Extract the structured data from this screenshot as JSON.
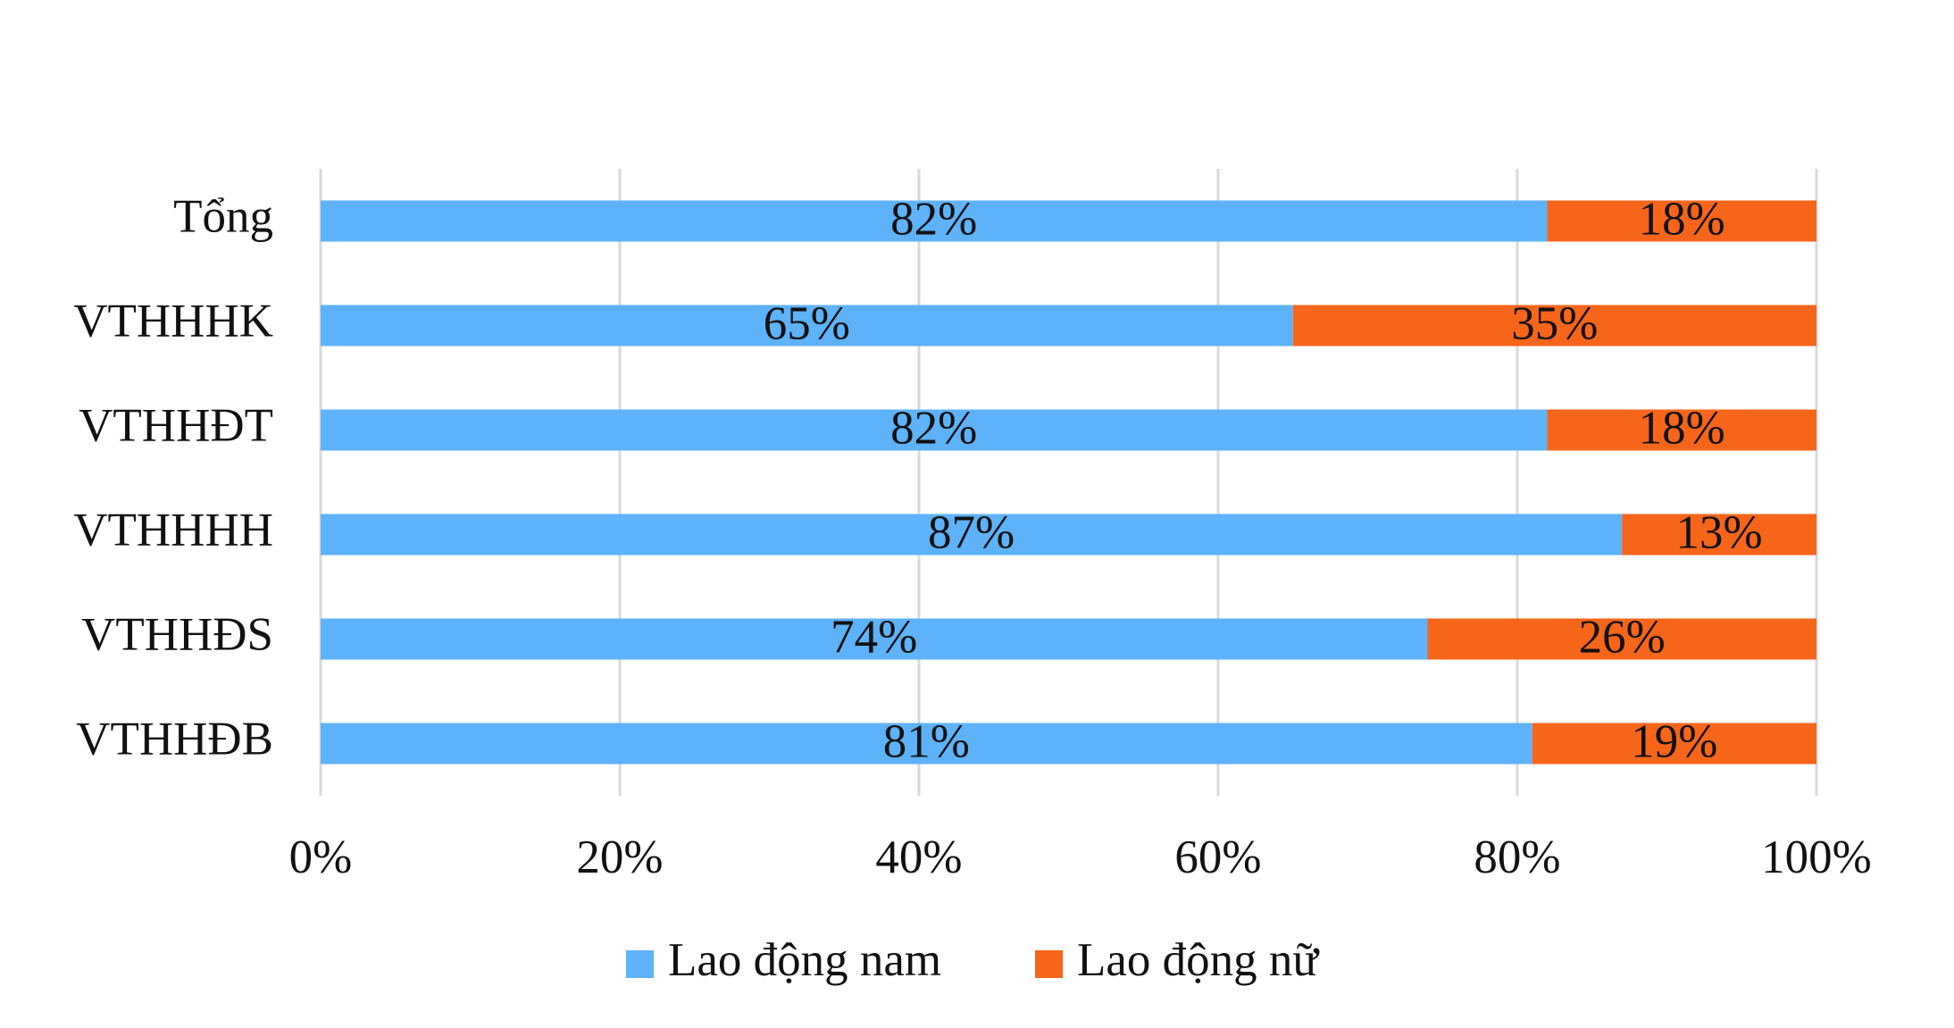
{
  "chart_data": {
    "type": "stacked_barh",
    "categories": [
      "Tổng",
      "VTHHHK",
      "VTHHĐT",
      "VTHHHH",
      "VTHHĐS",
      "VTHHĐB"
    ],
    "series": [
      {
        "name": "Lao động nam",
        "color": "#5eb2f9",
        "values": [
          82,
          65,
          82,
          87,
          74,
          81
        ],
        "value_labels": [
          "82%",
          "65%",
          "82%",
          "87%",
          "74%",
          "81%"
        ]
      },
      {
        "name": "Lao động nữ",
        "color": "#f7651b",
        "values": [
          18,
          35,
          18,
          13,
          26,
          19
        ],
        "value_labels": [
          "18%",
          "35%",
          "18%",
          "13%",
          "26%",
          "19%"
        ]
      }
    ],
    "xlim": [
      0,
      100
    ],
    "xticks": [
      {
        "value": 0,
        "label": "0%"
      },
      {
        "value": 20,
        "label": "20%"
      },
      {
        "value": 40,
        "label": "40%"
      },
      {
        "value": 60,
        "label": "60%"
      },
      {
        "value": 80,
        "label": "80%"
      },
      {
        "value": 100,
        "label": "100%"
      }
    ],
    "grid": true,
    "legend": "bottom"
  }
}
